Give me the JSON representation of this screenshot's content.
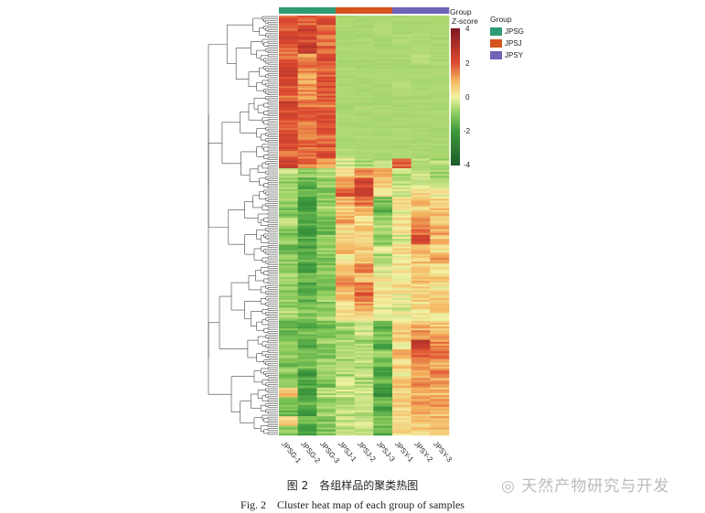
{
  "chart_data": {
    "type": "heatmap",
    "columns": [
      "JPSG-1",
      "JPSG-2",
      "JPSG-3",
      "JPSJ-1",
      "JPSJ-2",
      "JPSJ-3",
      "JPSY-1",
      "JPSY-2",
      "JPSY-3"
    ],
    "column_groups": [
      "JPSG",
      "JPSG",
      "JPSG",
      "JPSJ",
      "JPSJ",
      "JPSJ",
      "JPSY",
      "JPSY",
      "JPSY"
    ],
    "group_annotation_title": "Group",
    "colorbar": {
      "title": "Z-score",
      "ticks": [
        "4",
        "2",
        "0",
        "-2",
        "-4"
      ],
      "range": [
        -4,
        4
      ],
      "colors": {
        "-4": "#1e5a28",
        "-2": "#3d9a3e",
        "-1": "#8ccc5c",
        "0": "#f3f2a4",
        "1": "#f4b35e",
        "2": "#dd4a30",
        "4": "#7e1621"
      }
    },
    "legend": {
      "title": "Group",
      "items": [
        {
          "label": "JPSG",
          "color": "#2e9b72"
        },
        {
          "label": "JPSJ",
          "color": "#d4541d"
        },
        {
          "label": "JPSY",
          "color": "#6e64b8"
        }
      ]
    },
    "row_clustering": true,
    "rows_approx": [
      [
        2.0,
        1.6,
        1.9,
        -0.7,
        -0.7,
        -0.7,
        -0.7,
        -0.7,
        -0.7
      ],
      [
        1.8,
        2.4,
        1.7,
        -0.7,
        -0.7,
        -0.6,
        -0.7,
        -0.7,
        -0.7
      ],
      [
        2.1,
        2.2,
        1.5,
        -0.7,
        -0.7,
        -0.7,
        -0.6,
        -0.7,
        -0.7
      ],
      [
        1.6,
        2.6,
        1.8,
        -0.7,
        -0.7,
        -0.7,
        -0.7,
        -0.7,
        -0.7
      ],
      [
        1.9,
        1.2,
        2.0,
        -0.7,
        -0.7,
        -0.7,
        -0.7,
        -0.5,
        -0.7
      ],
      [
        2.4,
        1.5,
        1.7,
        -0.7,
        -0.7,
        -0.7,
        -0.7,
        -0.7,
        -0.7
      ],
      [
        2.2,
        1.0,
        1.9,
        -0.7,
        -0.7,
        -0.7,
        -0.7,
        -0.7,
        -0.7
      ],
      [
        2.0,
        1.4,
        2.1,
        -0.7,
        -0.7,
        -0.7,
        -0.6,
        -0.7,
        -0.7
      ],
      [
        1.7,
        1.3,
        1.8,
        -0.7,
        -0.7,
        -0.7,
        -0.7,
        -0.7,
        -0.7
      ],
      [
        2.3,
        1.6,
        1.6,
        -0.7,
        -0.7,
        -0.7,
        -0.7,
        -0.7,
        -0.7
      ],
      [
        2.0,
        1.8,
        1.9,
        -0.7,
        -0.7,
        -0.7,
        -0.7,
        -0.7,
        -0.7
      ],
      [
        1.9,
        1.5,
        2.2,
        -0.7,
        -0.7,
        -0.7,
        -0.7,
        -0.7,
        -0.7
      ],
      [
        2.1,
        1.2,
        1.7,
        -0.7,
        -0.7,
        -0.7,
        -0.7,
        -0.7,
        -0.7
      ],
      [
        2.0,
        1.7,
        1.8,
        -0.7,
        -0.7,
        -0.7,
        -0.7,
        -0.7,
        -0.7
      ],
      [
        1.8,
        1.4,
        2.0,
        -0.6,
        -0.7,
        -0.7,
        -0.7,
        -0.7,
        -0.7
      ],
      [
        2.5,
        1.6,
        1.2,
        -0.3,
        -0.6,
        -0.5,
        1.8,
        -0.4,
        -0.6
      ],
      [
        -0.6,
        -1.0,
        -0.8,
        0.5,
        1.2,
        0.8,
        -0.5,
        -0.6,
        -0.7
      ],
      [
        -0.9,
        -1.4,
        -0.9,
        1.4,
        2.2,
        0.6,
        -0.3,
        -0.2,
        -0.5
      ],
      [
        -1.0,
        -1.6,
        -1.1,
        1.8,
        2.5,
        0.4,
        -0.2,
        0.3,
        0.1
      ],
      [
        -0.8,
        -2.0,
        -1.0,
        0.9,
        1.6,
        -1.2,
        0.2,
        0.9,
        0.5
      ],
      [
        -1.2,
        -1.8,
        -0.7,
        0.6,
        1.0,
        -1.5,
        0.0,
        0.6,
        0.8
      ],
      [
        -0.7,
        -1.5,
        -1.2,
        1.1,
        0.4,
        -0.8,
        0.3,
        1.2,
        0.4
      ],
      [
        -1.1,
        -2.2,
        -1.4,
        0.3,
        0.7,
        -0.5,
        0.1,
        1.6,
        1.0
      ],
      [
        -0.9,
        -1.7,
        -1.0,
        0.5,
        0.2,
        -1.0,
        -0.2,
        2.0,
        0.7
      ],
      [
        -1.3,
        -1.9,
        -0.9,
        0.8,
        0.6,
        -0.4,
        0.4,
        1.1,
        0.3
      ],
      [
        -1.0,
        -1.6,
        -1.3,
        0.2,
        0.9,
        -0.7,
        0.0,
        0.7,
        1.2
      ],
      [
        -1.2,
        -2.0,
        -1.1,
        0.6,
        1.3,
        -0.3,
        0.2,
        0.5,
        0.4
      ],
      [
        -0.8,
        -1.4,
        -1.0,
        1.0,
        0.8,
        0.1,
        -0.1,
        0.9,
        0.6
      ],
      [
        -1.1,
        -1.8,
        -1.2,
        1.3,
        1.7,
        0.0,
        0.3,
        0.4,
        0.2
      ],
      [
        -0.9,
        -1.5,
        -0.8,
        0.7,
        1.9,
        0.2,
        0.1,
        0.6,
        0.8
      ],
      [
        -1.0,
        -1.3,
        -1.1,
        0.4,
        1.1,
        -0.2,
        -0.2,
        0.3,
        0.5
      ],
      [
        -0.7,
        -1.0,
        -0.6,
        0.2,
        0.5,
        0.0,
        0.1,
        0.2,
        0.3
      ],
      [
        -1.3,
        -1.6,
        -1.4,
        -0.8,
        -0.5,
        -1.6,
        0.4,
        0.9,
        0.7
      ],
      [
        -1.5,
        -1.2,
        -1.0,
        -1.0,
        -0.3,
        -1.2,
        0.6,
        1.4,
        1.1
      ],
      [
        -1.2,
        -1.8,
        -0.9,
        -0.6,
        -0.8,
        -1.8,
        0.3,
        2.6,
        1.3
      ],
      [
        -1.0,
        -1.5,
        -1.2,
        -0.5,
        -0.4,
        -1.0,
        0.8,
        1.8,
        1.6
      ],
      [
        -1.4,
        -1.3,
        -0.8,
        -0.9,
        -0.6,
        -1.4,
        0.5,
        1.2,
        1.0
      ],
      [
        -1.1,
        -2.0,
        -1.0,
        -0.7,
        -0.2,
        -2.0,
        0.2,
        1.0,
        1.4
      ],
      [
        -1.2,
        -1.6,
        -1.3,
        -0.4,
        -0.7,
        -1.5,
        0.7,
        1.5,
        1.1
      ],
      [
        0.8,
        -1.9,
        -0.6,
        -0.3,
        -0.5,
        -2.2,
        0.4,
        0.8,
        0.9
      ],
      [
        -1.0,
        -1.4,
        -1.1,
        -0.8,
        -0.3,
        -1.3,
        0.6,
        1.1,
        1.2
      ],
      [
        -1.3,
        -2.1,
        -0.9,
        -0.6,
        -0.6,
        -1.7,
        0.3,
        0.9,
        0.8
      ],
      [
        0.6,
        -1.5,
        -1.0,
        -0.5,
        -0.4,
        -1.1,
        0.5,
        0.7,
        1.0
      ],
      [
        -1.1,
        -1.8,
        -1.2,
        -0.7,
        -0.5,
        -1.6,
        0.4,
        0.6,
        0.9
      ]
    ]
  },
  "caption": {
    "zh": "图 2　各组样品的聚类热图",
    "en": "Fig. 2　Cluster heat map of each group of samples"
  },
  "watermark": "天然产物研究与开发"
}
